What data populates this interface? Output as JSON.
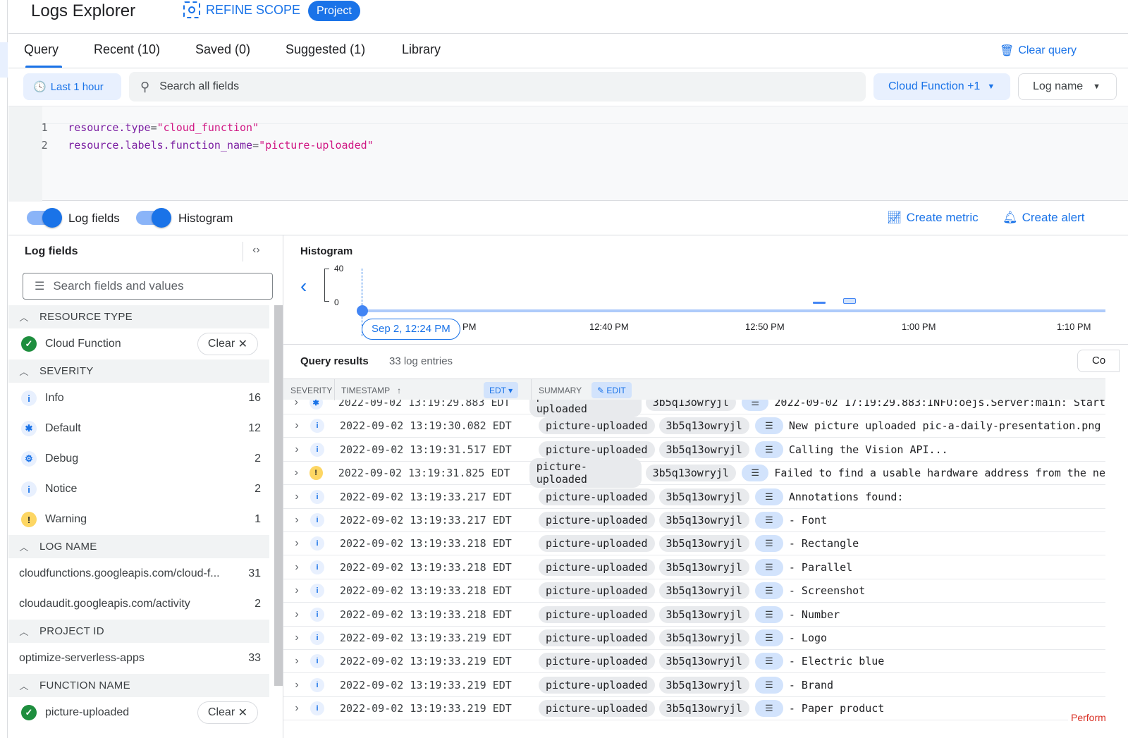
{
  "header": {
    "title": "Logs Explorer",
    "refine_scope": "REFINE SCOPE",
    "scope_badge": "Project"
  },
  "tabs": [
    {
      "label": "Query",
      "active": true
    },
    {
      "label": "Recent (10)"
    },
    {
      "label": "Saved (0)"
    },
    {
      "label": "Suggested (1)"
    },
    {
      "label": "Library"
    }
  ],
  "clear_query": "Clear query",
  "filters": {
    "time_range": "Last 1 hour",
    "search_placeholder": "Search all fields",
    "resource": "Cloud Function +1",
    "log_name": "Log name"
  },
  "query_lines": [
    {
      "n": "1",
      "key": "resource.type",
      "val": "\"cloud_function\""
    },
    {
      "n": "2",
      "key": "resource.labels.function_name",
      "val": "\"picture-uploaded\""
    }
  ],
  "toggles": {
    "log_fields": "Log fields",
    "histogram": "Histogram"
  },
  "actions": {
    "create_metric": "Create metric",
    "create_alert": "Create alert"
  },
  "log_fields": {
    "title": "Log fields",
    "search_placeholder": "Search fields and values",
    "clear": "Clear",
    "resource_type": {
      "label": "RESOURCE TYPE",
      "item": "Cloud Function"
    },
    "severity": {
      "label": "SEVERITY",
      "items": [
        {
          "label": "Info",
          "count": "16",
          "icon": "i"
        },
        {
          "label": "Default",
          "count": "12",
          "icon": "✱"
        },
        {
          "label": "Debug",
          "count": "2",
          "icon": "⚙"
        },
        {
          "label": "Notice",
          "count": "2",
          "icon": "i"
        },
        {
          "label": "Warning",
          "count": "1",
          "icon": "!"
        }
      ]
    },
    "log_name": {
      "label": "LOG NAME",
      "items": [
        {
          "label": "cloudfunctions.googleapis.com/cloud-f...",
          "count": "31"
        },
        {
          "label": "cloudaudit.googleapis.com/activity",
          "count": "2"
        }
      ]
    },
    "project_id": {
      "label": "PROJECT ID",
      "items": [
        {
          "label": "optimize-serverless-apps",
          "count": "33"
        }
      ]
    },
    "function_name": {
      "label": "FUNCTION NAME",
      "item": "picture-uploaded"
    }
  },
  "histogram": {
    "title": "Histogram",
    "y_max": "40",
    "y_min": "0",
    "start_label": "Sep 2, 12:24 PM",
    "ticks": [
      "PM",
      "12:40 PM",
      "12:50 PM",
      "1:00 PM",
      "1:10 PM"
    ]
  },
  "results": {
    "title": "Query results",
    "count": "33 log entries",
    "partial_button": "Co",
    "columns": {
      "severity": "SEVERITY",
      "timestamp": "TIMESTAMP",
      "tz": "EDT",
      "summary": "SUMMARY",
      "edit": "EDIT"
    },
    "rows": [
      {
        "sev": "default",
        "ts": "2022-09-02 13:19:29.883 EDT",
        "fn": "picture-uploaded",
        "id": "3b5q13owryjl",
        "msg": "2022-09-02 17:19:29.883:INFO:oejs.Server:main: Start"
      },
      {
        "sev": "info",
        "ts": "2022-09-02 13:19:30.082 EDT",
        "fn": "picture-uploaded",
        "id": "3b5q13owryjl",
        "msg": "New picture uploaded pic-a-daily-presentation.png"
      },
      {
        "sev": "info",
        "ts": "2022-09-02 13:19:31.517 EDT",
        "fn": "picture-uploaded",
        "id": "3b5q13owryjl",
        "msg": "Calling the Vision API..."
      },
      {
        "sev": "warning",
        "ts": "2022-09-02 13:19:31.825 EDT",
        "fn": "picture-uploaded",
        "id": "3b5q13owryjl",
        "msg": "Failed to find a usable hardware address from the ne"
      },
      {
        "sev": "info",
        "ts": "2022-09-02 13:19:33.217 EDT",
        "fn": "picture-uploaded",
        "id": "3b5q13owryjl",
        "msg": "Annotations found:"
      },
      {
        "sev": "info",
        "ts": "2022-09-02 13:19:33.217 EDT",
        "fn": "picture-uploaded",
        "id": "3b5q13owryjl",
        "msg": "- Font"
      },
      {
        "sev": "info",
        "ts": "2022-09-02 13:19:33.218 EDT",
        "fn": "picture-uploaded",
        "id": "3b5q13owryjl",
        "msg": "- Rectangle"
      },
      {
        "sev": "info",
        "ts": "2022-09-02 13:19:33.218 EDT",
        "fn": "picture-uploaded",
        "id": "3b5q13owryjl",
        "msg": "- Parallel"
      },
      {
        "sev": "info",
        "ts": "2022-09-02 13:19:33.218 EDT",
        "fn": "picture-uploaded",
        "id": "3b5q13owryjl",
        "msg": "- Screenshot"
      },
      {
        "sev": "info",
        "ts": "2022-09-02 13:19:33.218 EDT",
        "fn": "picture-uploaded",
        "id": "3b5q13owryjl",
        "msg": "- Number"
      },
      {
        "sev": "info",
        "ts": "2022-09-02 13:19:33.219 EDT",
        "fn": "picture-uploaded",
        "id": "3b5q13owryjl",
        "msg": "- Logo"
      },
      {
        "sev": "info",
        "ts": "2022-09-02 13:19:33.219 EDT",
        "fn": "picture-uploaded",
        "id": "3b5q13owryjl",
        "msg": "- Electric blue"
      },
      {
        "sev": "info",
        "ts": "2022-09-02 13:19:33.219 EDT",
        "fn": "picture-uploaded",
        "id": "3b5q13owryjl",
        "msg": "- Brand"
      },
      {
        "sev": "info",
        "ts": "2022-09-02 13:19:33.219 EDT",
        "fn": "picture-uploaded",
        "id": "3b5q13owryjl",
        "msg": "- Paper product"
      }
    ]
  },
  "footer_partial": "Perform",
  "colors": {
    "accent": "#1a73e8",
    "warning": "#fdd663",
    "success": "#1e8e3e",
    "string": "#d01884",
    "keyword": "#7b1fa2"
  }
}
